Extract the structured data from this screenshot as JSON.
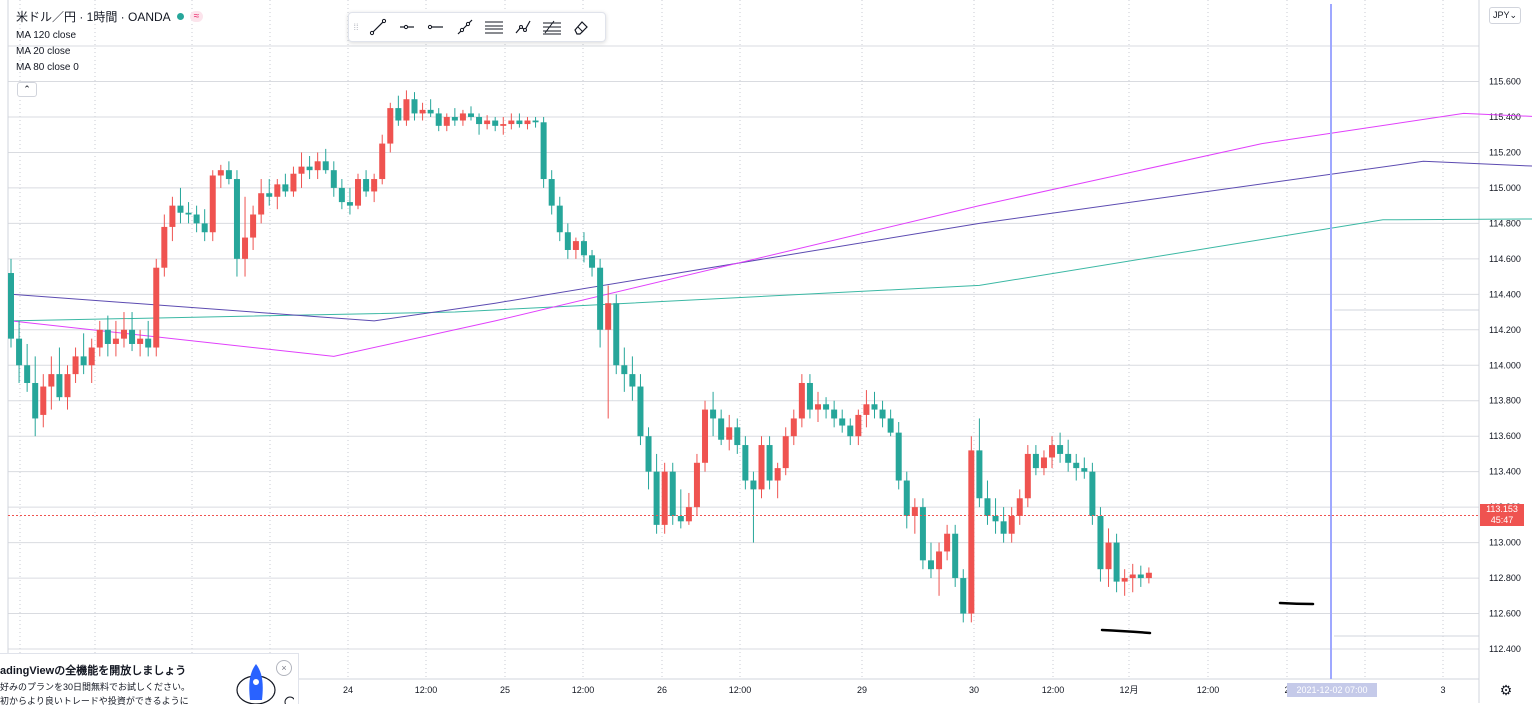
{
  "legend": {
    "symbol": "米ドル／円 · 1時間 · OANDA",
    "approx_label": "≈",
    "ma_lines": [
      "MA 120 close",
      "MA 20 close",
      "MA 80 close 0"
    ],
    "collapse_icon": "chevron-up-icon"
  },
  "toolbar": {
    "tools": [
      "trend-line-icon",
      "horizontal-ray-icon",
      "horizontal-line-icon",
      "extended-line-icon",
      "parallel-channel-icon",
      "path-icon",
      "fib-retracement-icon",
      "eraser-icon"
    ]
  },
  "currency_button": "JPY",
  "price_tag": {
    "price": "113.153",
    "countdown": "45:47"
  },
  "time_tag": "2021-12-02  07:00",
  "promo": {
    "heading": "adingViewの全機能を開放しましょう",
    "line1": "好みのプランを30日間無料でお試しください。",
    "line2": "初からより良いトレードや投資ができるように",
    "close": "×"
  },
  "settings_icon": "gear-icon",
  "colors": {
    "up": "#ef5350",
    "down": "#26a69a",
    "ma120": "#5c4bb1",
    "ma20": "#e040fb",
    "ma80": "#3bb8a4",
    "cursor": "#9fa8ff"
  },
  "chart_data": {
    "type": "candlestick",
    "symbol": "USDJPY",
    "interval": "1h",
    "y_ticks": [
      115.6,
      115.4,
      115.2,
      115.0,
      114.8,
      114.6,
      114.4,
      114.2,
      114.0,
      113.8,
      113.6,
      113.4,
      113.2,
      113.0,
      112.8,
      112.6,
      112.4
    ],
    "y_tick_labels": [
      "115.600",
      "115.400",
      "115.200",
      "115.000",
      "114.800",
      "114.600",
      "114.400",
      "114.200",
      "114.000",
      "113.800",
      "113.600",
      "113.400",
      "113.200",
      "113.000",
      "112.800",
      "112.600",
      "112.400"
    ],
    "ylim": [
      112.3,
      115.75
    ],
    "x_labels": [
      "24",
      "12:00",
      "25",
      "12:00",
      "26",
      "12:00",
      "29",
      "30",
      "12:00",
      "12月",
      "12:00",
      "2",
      "3"
    ],
    "last_price": 113.153,
    "candles": [
      [
        114.52,
        114.6,
        114.1,
        114.15
      ],
      [
        114.15,
        114.25,
        113.9,
        114.0
      ],
      [
        114.0,
        114.12,
        113.85,
        113.9
      ],
      [
        113.9,
        114.05,
        113.6,
        113.7
      ],
      [
        113.72,
        113.95,
        113.65,
        113.88
      ],
      [
        113.88,
        114.05,
        113.75,
        113.95
      ],
      [
        113.95,
        114.1,
        113.8,
        113.82
      ],
      [
        113.82,
        114.0,
        113.75,
        113.95
      ],
      [
        113.95,
        114.1,
        113.9,
        114.05
      ],
      [
        114.05,
        114.18,
        113.95,
        114.0
      ],
      [
        114.0,
        114.15,
        113.9,
        114.1
      ],
      [
        114.1,
        114.25,
        114.05,
        114.2
      ],
      [
        114.2,
        114.28,
        114.05,
        114.12
      ],
      [
        114.12,
        114.25,
        114.05,
        114.15
      ],
      [
        114.15,
        114.3,
        114.1,
        114.2
      ],
      [
        114.2,
        114.3,
        114.08,
        114.12
      ],
      [
        114.12,
        114.2,
        114.05,
        114.15
      ],
      [
        114.15,
        114.25,
        114.05,
        114.1
      ],
      [
        114.1,
        114.6,
        114.05,
        114.55
      ],
      [
        114.55,
        114.85,
        114.5,
        114.78
      ],
      [
        114.78,
        114.95,
        114.7,
        114.9
      ],
      [
        114.9,
        115.0,
        114.8,
        114.86
      ],
      [
        114.86,
        114.92,
        114.8,
        114.85
      ],
      [
        114.85,
        114.9,
        114.75,
        114.8
      ],
      [
        114.8,
        114.88,
        114.7,
        114.75
      ],
      [
        114.75,
        115.1,
        114.7,
        115.07
      ],
      [
        115.07,
        115.13,
        115.0,
        115.1
      ],
      [
        115.1,
        115.15,
        115.02,
        115.05
      ],
      [
        115.05,
        115.1,
        114.5,
        114.6
      ],
      [
        114.6,
        114.95,
        114.5,
        114.72
      ],
      [
        114.72,
        114.9,
        114.65,
        114.85
      ],
      [
        114.85,
        115.05,
        114.8,
        114.97
      ],
      [
        114.97,
        115.05,
        114.9,
        114.95
      ],
      [
        114.95,
        115.05,
        114.88,
        115.02
      ],
      [
        115.02,
        115.08,
        114.95,
        114.98
      ],
      [
        114.98,
        115.12,
        114.95,
        115.08
      ],
      [
        115.08,
        115.2,
        115.0,
        115.12
      ],
      [
        115.12,
        115.18,
        115.05,
        115.1
      ],
      [
        115.1,
        115.2,
        115.05,
        115.15
      ],
      [
        115.15,
        115.22,
        115.08,
        115.1
      ],
      [
        115.1,
        115.15,
        114.95,
        115.0
      ],
      [
        115.0,
        115.05,
        114.88,
        114.92
      ],
      [
        114.92,
        115.0,
        114.85,
        114.9
      ],
      [
        114.9,
        115.08,
        114.88,
        115.05
      ],
      [
        115.05,
        115.1,
        114.95,
        114.98
      ],
      [
        114.98,
        115.08,
        114.92,
        115.05
      ],
      [
        115.05,
        115.3,
        115.02,
        115.25
      ],
      [
        115.25,
        115.48,
        115.2,
        115.45
      ],
      [
        115.45,
        115.52,
        115.35,
        115.38
      ],
      [
        115.38,
        115.55,
        115.35,
        115.5
      ],
      [
        115.5,
        115.54,
        115.38,
        115.42
      ],
      [
        115.42,
        115.48,
        115.38,
        115.44
      ],
      [
        115.44,
        115.5,
        115.4,
        115.42
      ],
      [
        115.42,
        115.45,
        115.32,
        115.35
      ],
      [
        115.35,
        115.42,
        115.32,
        115.4
      ],
      [
        115.4,
        115.45,
        115.35,
        115.38
      ],
      [
        115.38,
        115.44,
        115.35,
        115.42
      ],
      [
        115.42,
        115.46,
        115.38,
        115.4
      ],
      [
        115.4,
        115.42,
        115.3,
        115.36
      ],
      [
        115.36,
        115.41,
        115.33,
        115.38
      ],
      [
        115.38,
        115.4,
        115.32,
        115.35
      ],
      [
        115.35,
        115.4,
        115.3,
        115.36
      ],
      [
        115.36,
        115.42,
        115.33,
        115.38
      ],
      [
        115.38,
        115.42,
        115.34,
        115.36
      ],
      [
        115.36,
        115.4,
        115.33,
        115.38
      ],
      [
        115.38,
        115.4,
        115.34,
        115.37
      ],
      [
        115.37,
        115.4,
        115.0,
        115.05
      ],
      [
        115.05,
        115.1,
        114.85,
        114.9
      ],
      [
        114.9,
        114.95,
        114.7,
        114.75
      ],
      [
        114.75,
        114.8,
        114.6,
        114.65
      ],
      [
        114.65,
        114.72,
        114.6,
        114.7
      ],
      [
        114.7,
        114.75,
        114.58,
        114.62
      ],
      [
        114.62,
        114.65,
        114.5,
        114.55
      ],
      [
        114.55,
        114.6,
        114.1,
        114.2
      ],
      [
        114.2,
        114.45,
        113.7,
        114.35
      ],
      [
        114.35,
        114.4,
        113.95,
        114.0
      ],
      [
        114.0,
        114.1,
        113.85,
        113.95
      ],
      [
        113.95,
        114.05,
        113.8,
        113.88
      ],
      [
        113.88,
        113.95,
        113.55,
        113.6
      ],
      [
        113.6,
        113.65,
        113.3,
        113.4
      ],
      [
        113.4,
        113.5,
        113.05,
        113.1
      ],
      [
        113.1,
        113.45,
        113.05,
        113.4
      ],
      [
        113.4,
        113.45,
        113.1,
        113.15
      ],
      [
        113.15,
        113.3,
        113.08,
        113.12
      ],
      [
        113.12,
        113.28,
        113.1,
        113.2
      ],
      [
        113.2,
        113.5,
        113.15,
        113.45
      ],
      [
        113.45,
        113.8,
        113.4,
        113.75
      ],
      [
        113.75,
        113.85,
        113.6,
        113.7
      ],
      [
        113.7,
        113.75,
        113.55,
        113.58
      ],
      [
        113.58,
        113.72,
        113.52,
        113.65
      ],
      [
        113.65,
        113.7,
        113.5,
        113.55
      ],
      [
        113.55,
        113.6,
        113.3,
        113.35
      ],
      [
        113.35,
        113.4,
        113.0,
        113.3
      ],
      [
        113.3,
        113.6,
        113.25,
        113.55
      ],
      [
        113.55,
        113.6,
        113.3,
        113.35
      ],
      [
        113.35,
        113.45,
        113.25,
        113.42
      ],
      [
        113.42,
        113.65,
        113.38,
        113.6
      ],
      [
        113.6,
        113.75,
        113.55,
        113.7
      ],
      [
        113.7,
        113.95,
        113.65,
        113.9
      ],
      [
        113.9,
        113.95,
        113.7,
        113.75
      ],
      [
        113.75,
        113.85,
        113.68,
        113.78
      ],
      [
        113.78,
        113.82,
        113.7,
        113.75
      ],
      [
        113.75,
        113.8,
        113.65,
        113.7
      ],
      [
        113.7,
        113.75,
        113.62,
        113.66
      ],
      [
        113.66,
        113.7,
        113.55,
        113.6
      ],
      [
        113.6,
        113.75,
        113.55,
        113.72
      ],
      [
        113.72,
        113.86,
        113.65,
        113.78
      ],
      [
        113.78,
        113.85,
        113.7,
        113.75
      ],
      [
        113.75,
        113.8,
        113.65,
        113.7
      ],
      [
        113.7,
        113.75,
        113.6,
        113.62
      ],
      [
        113.62,
        113.68,
        113.3,
        113.35
      ],
      [
        113.35,
        113.4,
        113.08,
        113.15
      ],
      [
        113.15,
        113.25,
        113.05,
        113.2
      ],
      [
        113.2,
        113.25,
        112.85,
        112.9
      ],
      [
        112.9,
        113.0,
        112.8,
        112.85
      ],
      [
        112.85,
        113.0,
        112.7,
        112.95
      ],
      [
        112.95,
        113.1,
        112.9,
        113.05
      ],
      [
        113.05,
        113.1,
        112.75,
        112.8
      ],
      [
        112.8,
        112.85,
        112.55,
        112.6
      ],
      [
        112.6,
        113.6,
        112.55,
        113.52
      ],
      [
        113.52,
        113.7,
        113.2,
        113.25
      ],
      [
        113.25,
        113.35,
        113.1,
        113.15
      ],
      [
        113.15,
        113.25,
        113.05,
        113.12
      ],
      [
        113.12,
        113.2,
        113.0,
        113.05
      ],
      [
        113.05,
        113.2,
        113.0,
        113.15
      ],
      [
        113.15,
        113.3,
        113.1,
        113.25
      ],
      [
        113.25,
        113.55,
        113.2,
        113.5
      ],
      [
        113.5,
        113.55,
        113.38,
        113.42
      ],
      [
        113.42,
        113.52,
        113.38,
        113.48
      ],
      [
        113.48,
        113.6,
        113.42,
        113.55
      ],
      [
        113.55,
        113.62,
        113.45,
        113.5
      ],
      [
        113.5,
        113.58,
        113.4,
        113.45
      ],
      [
        113.45,
        113.5,
        113.35,
        113.42
      ],
      [
        113.42,
        113.48,
        113.36,
        113.4
      ],
      [
        113.4,
        113.45,
        113.1,
        113.15
      ],
      [
        113.15,
        113.2,
        112.78,
        112.85
      ],
      [
        112.85,
        113.08,
        112.75,
        113.0
      ],
      [
        113.0,
        113.05,
        112.72,
        112.78
      ],
      [
        112.78,
        112.85,
        112.7,
        112.8
      ],
      [
        112.8,
        112.88,
        112.72,
        112.82
      ],
      [
        112.82,
        112.87,
        112.75,
        112.8
      ],
      [
        112.8,
        112.86,
        112.77,
        112.83
      ]
    ],
    "ma120": [
      [
        114.4,
        0
      ],
      [
        114.25,
        45
      ],
      [
        114.35,
        60
      ],
      [
        114.8,
        120
      ],
      [
        115.15,
        175
      ],
      [
        115.12,
        190
      ],
      [
        114.8,
        260
      ],
      [
        114.3,
        335
      ],
      [
        113.8,
        430
      ],
      [
        113.6,
        460
      ],
      [
        113.33,
        505
      ]
    ],
    "ma20": [
      [
        114.25,
        0
      ],
      [
        114.05,
        40
      ],
      [
        114.25,
        60
      ],
      [
        114.9,
        120
      ],
      [
        115.25,
        155
      ],
      [
        115.42,
        180
      ],
      [
        115.38,
        200
      ],
      [
        114.35,
        255
      ],
      [
        113.75,
        290
      ],
      [
        113.45,
        330
      ],
      [
        113.72,
        365
      ],
      [
        113.2,
        400
      ],
      [
        113.55,
        430
      ],
      [
        113.45,
        470
      ],
      [
        113.15,
        505
      ]
    ],
    "ma80": [
      [
        114.25,
        0
      ],
      [
        114.3,
        55
      ],
      [
        114.45,
        120
      ],
      [
        114.82,
        170
      ],
      [
        114.83,
        210
      ],
      [
        114.6,
        330
      ],
      [
        114.4,
        380
      ],
      [
        114.2,
        430
      ],
      [
        113.88,
        505
      ]
    ]
  }
}
